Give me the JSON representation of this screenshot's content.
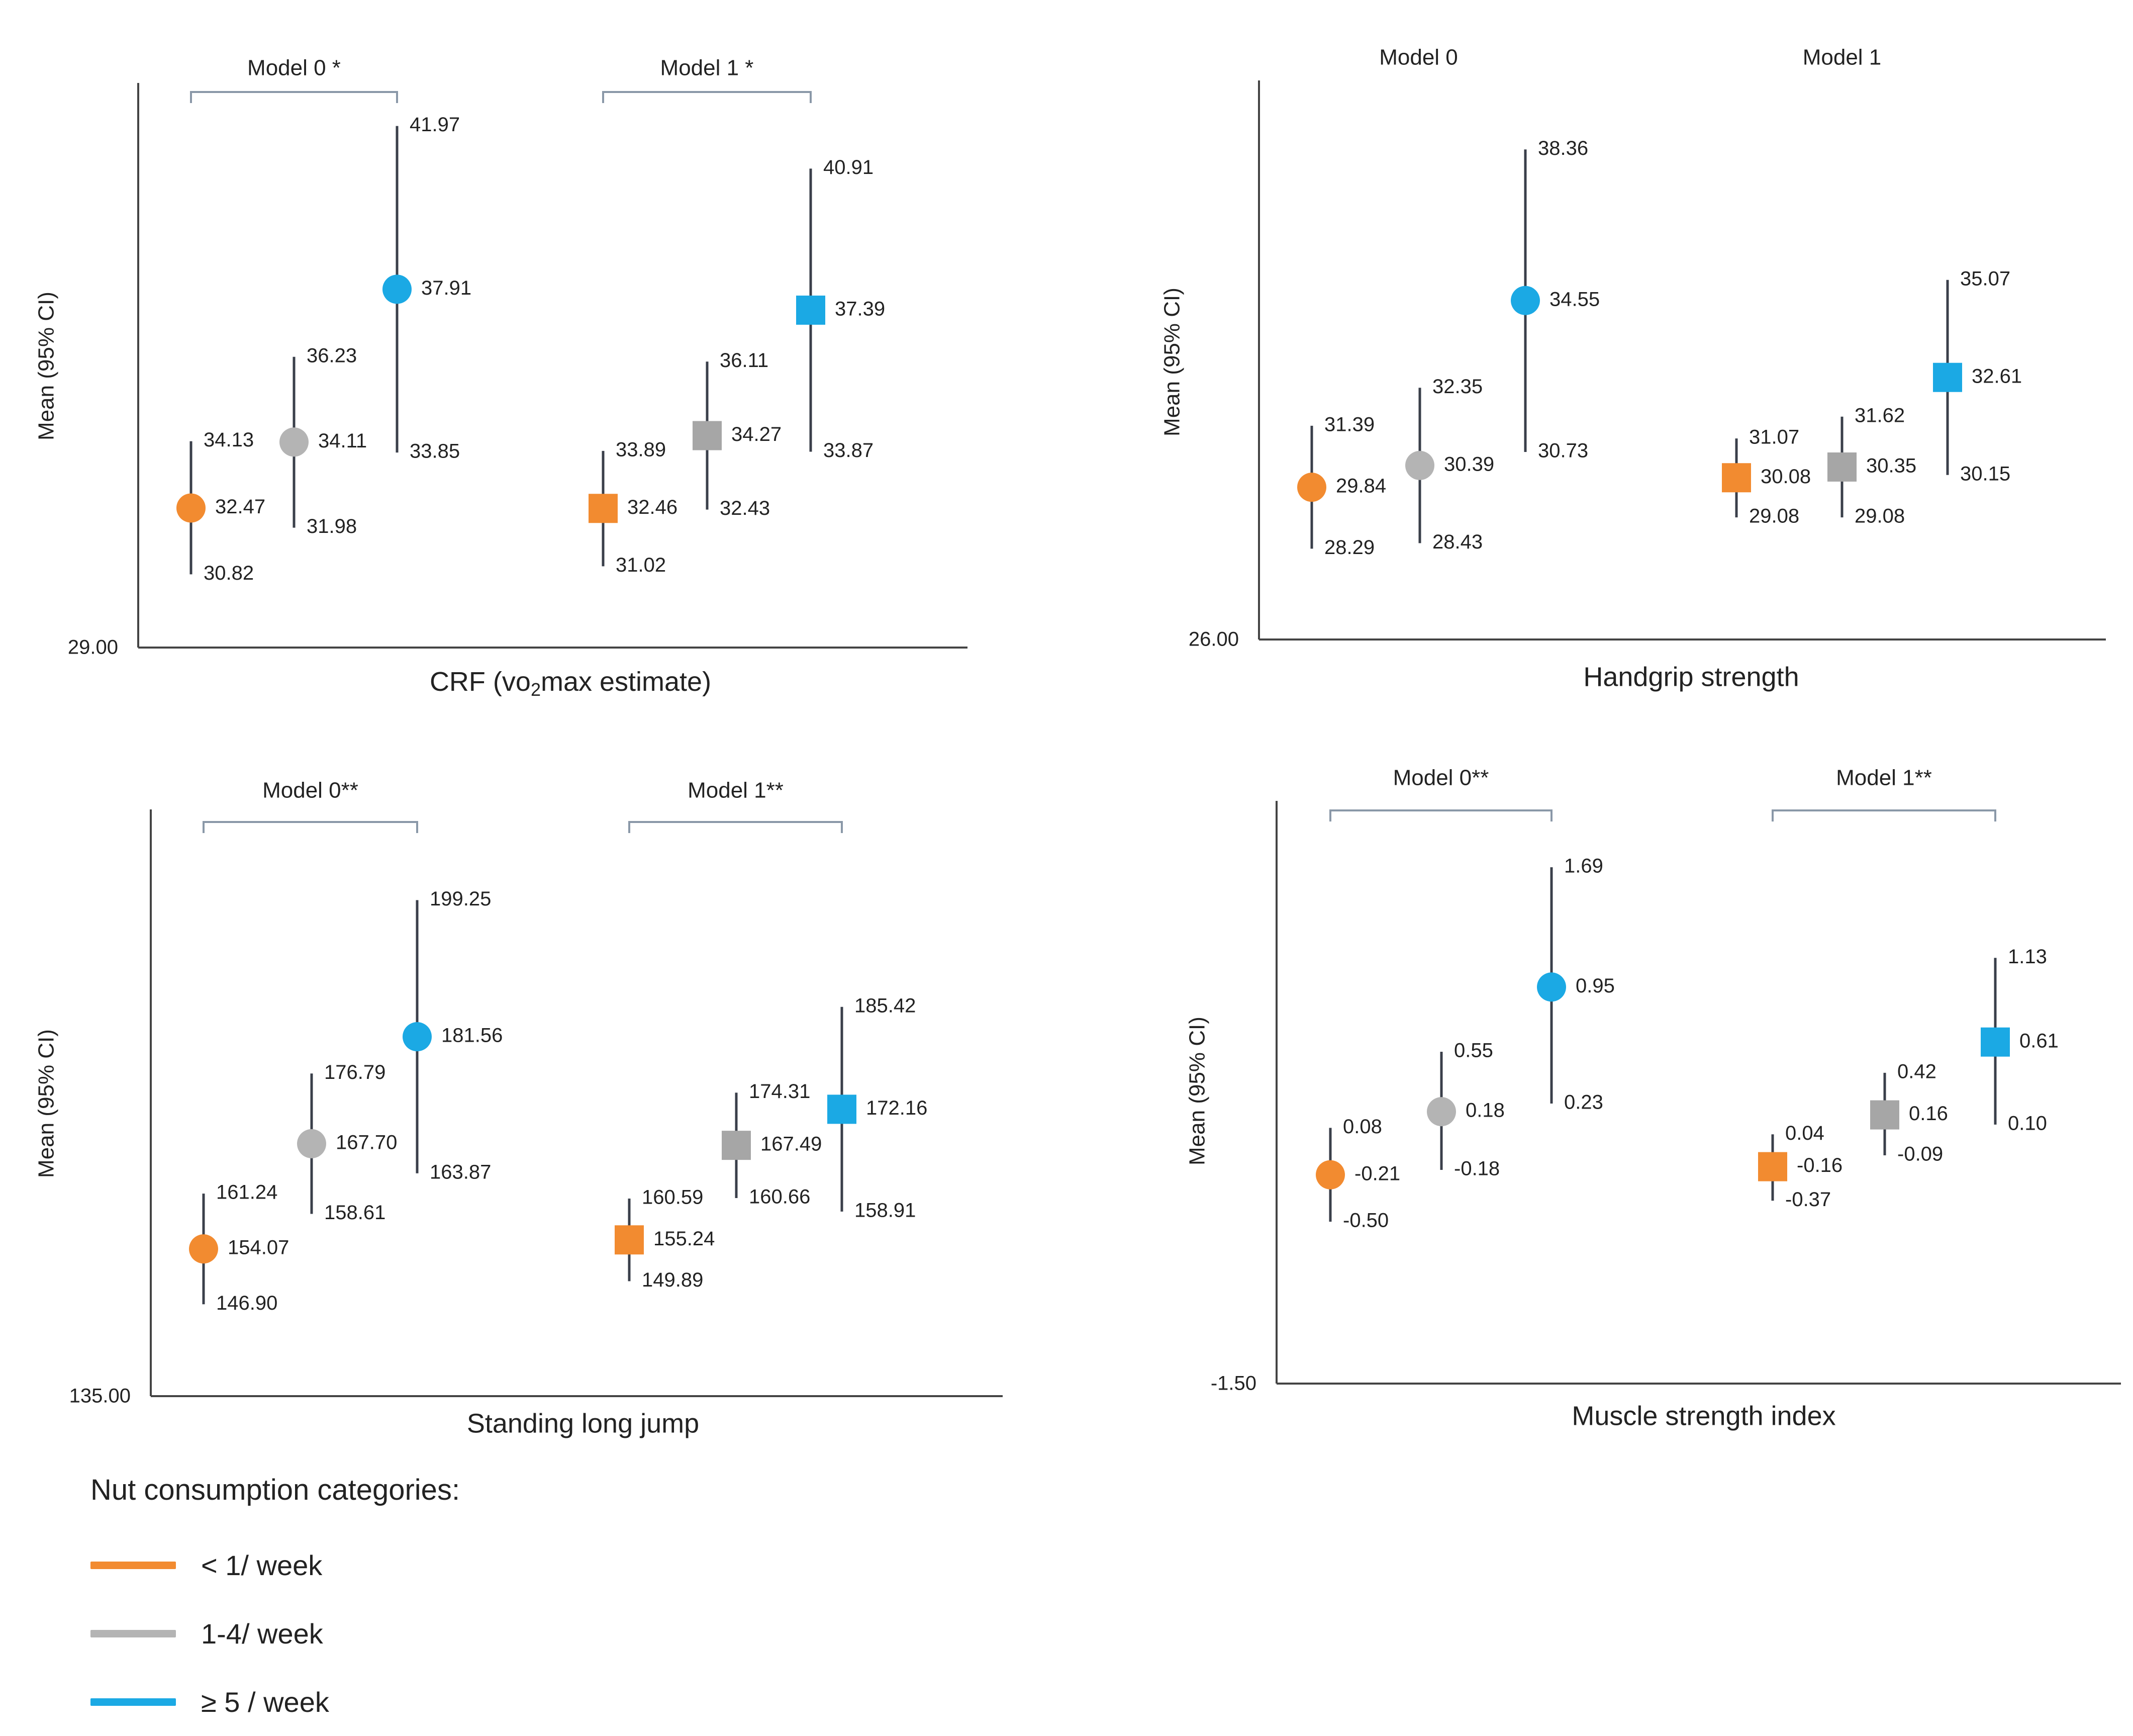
{
  "colors": {
    "low": "#F28B30",
    "mid": "#B4B4B4",
    "high": "#1BA9E4",
    "mid_square": "#A6A6A6"
  },
  "legend": {
    "title": "Nut consumption categories:",
    "items": [
      {
        "label": "< 1/ week",
        "color": "#F28B30"
      },
      {
        "label": "1-4/ week",
        "color": "#B4B4B4"
      },
      {
        "label": "≥ 5 / week",
        "color": "#1BA9E4"
      }
    ]
  },
  "chart_data": [
    {
      "type": "scatter",
      "title": "CRF (vo₂max estimate)",
      "ylabel": "Mean (95% CI)",
      "y_tick_label": "29.00",
      "ylim": [
        29.0,
        43.04
      ],
      "groups": [
        {
          "label": "Model 0 *",
          "bracket": true,
          "marker": "circle",
          "points": [
            {
              "category": "< 1/ week",
              "mean": 32.47,
              "lower": 30.82,
              "upper": 34.13
            },
            {
              "category": "1-4/ week",
              "mean": 34.11,
              "lower": 31.98,
              "upper": 36.23
            },
            {
              "category": "≥ 5 / week",
              "mean": 37.91,
              "lower": 33.85,
              "upper": 41.97
            }
          ]
        },
        {
          "label": "Model 1 *",
          "bracket": true,
          "marker": "square",
          "points": [
            {
              "category": "< 1/ week",
              "mean": 32.46,
              "lower": 31.02,
              "upper": 33.89
            },
            {
              "category": "1-4/ week",
              "mean": 34.27,
              "lower": 32.43,
              "upper": 36.11
            },
            {
              "category": "≥ 5 / week",
              "mean": 37.39,
              "lower": 33.87,
              "upper": 40.91
            }
          ]
        }
      ]
    },
    {
      "type": "scatter",
      "title": "Handgrip strength",
      "ylabel": "Mean (95% CI)",
      "y_tick_label": "26.00",
      "ylim": [
        26.0,
        40.1
      ],
      "groups": [
        {
          "label": "Model 0",
          "bracket": false,
          "marker": "circle",
          "points": [
            {
              "category": "< 1/ week",
              "mean": 29.84,
              "lower": 28.29,
              "upper": 31.39
            },
            {
              "category": "1-4/ week",
              "mean": 30.39,
              "lower": 28.43,
              "upper": 32.35
            },
            {
              "category": "≥ 5 / week",
              "mean": 34.55,
              "lower": 30.73,
              "upper": 38.36
            }
          ]
        },
        {
          "label": "Model 1",
          "bracket": false,
          "marker": "square",
          "points": [
            {
              "category": "< 1/ week",
              "mean": 30.08,
              "lower": 29.08,
              "upper": 31.07
            },
            {
              "category": "1-4/ week",
              "mean": 30.35,
              "lower": 29.08,
              "upper": 31.62
            },
            {
              "category": "≥ 5 / week",
              "mean": 32.61,
              "lower": 30.15,
              "upper": 35.07
            }
          ]
        }
      ]
    },
    {
      "type": "scatter",
      "title": "Standing long jump",
      "ylabel": "Mean (95% CI)",
      "y_tick_label": "135.00",
      "ylim": [
        135.0,
        211.0
      ],
      "groups": [
        {
          "label": "Model 0**",
          "bracket": true,
          "marker": "circle",
          "points": [
            {
              "category": "< 1/ week",
              "mean": 154.07,
              "lower": 146.9,
              "upper": 161.24
            },
            {
              "category": "1-4/ week",
              "mean": 167.7,
              "lower": 158.61,
              "upper": 176.79
            },
            {
              "category": "≥ 5 / week",
              "mean": 181.56,
              "lower": 163.87,
              "upper": 199.25
            }
          ]
        },
        {
          "label": "Model 1**",
          "bracket": true,
          "marker": "square",
          "points": [
            {
              "category": "< 1/ week",
              "mean": 155.24,
              "lower": 149.89,
              "upper": 160.59
            },
            {
              "category": "1-4/ week",
              "mean": 167.49,
              "lower": 160.66,
              "upper": 174.31
            },
            {
              "category": "≥ 5 / week",
              "mean": 172.16,
              "lower": 158.91,
              "upper": 185.42
            }
          ]
        }
      ]
    },
    {
      "type": "scatter",
      "title": "Muscle strength index",
      "ylabel": "Mean (95% CI)",
      "y_tick_label": "-1.50",
      "ylim": [
        -1.5,
        2.1
      ],
      "groups": [
        {
          "label": "Model 0**",
          "bracket": true,
          "marker": "circle",
          "points": [
            {
              "category": "< 1/ week",
              "mean": -0.21,
              "lower": -0.5,
              "upper": 0.08
            },
            {
              "category": "1-4/ week",
              "mean": 0.18,
              "lower": -0.18,
              "upper": 0.55
            },
            {
              "category": "≥ 5 / week",
              "mean": 0.95,
              "lower": 0.23,
              "upper": 1.69
            }
          ]
        },
        {
          "label": "Model 1**",
          "bracket": true,
          "marker": "square",
          "points": [
            {
              "category": "< 1/ week",
              "mean": -0.16,
              "lower": -0.37,
              "upper": 0.04
            },
            {
              "category": "1-4/ week",
              "mean": 0.16,
              "lower": -0.09,
              "upper": 0.42
            },
            {
              "category": "≥ 5 / week",
              "mean": 0.61,
              "lower": 0.1,
              "upper": 1.13
            }
          ]
        }
      ]
    }
  ]
}
